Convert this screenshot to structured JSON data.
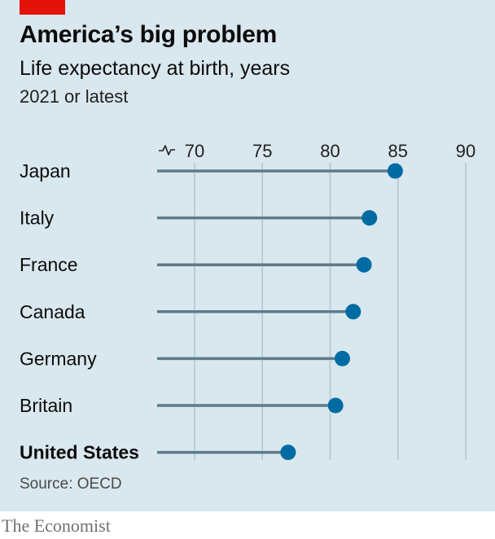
{
  "header": {
    "title": "America’s big problem",
    "subtitle": "Life expectancy at birth, years",
    "note": "2021 or latest"
  },
  "footer": {
    "source": "Source: OECD",
    "brand": "The Economist"
  },
  "colors": {
    "background": "#d9e7ee",
    "accent_red": "#e3120b",
    "dot": "#006ba2",
    "stem": "#5d7b8b",
    "grid": "#b4c5cf"
  },
  "chart_data": {
    "type": "lollipop",
    "title": "America’s big problem",
    "subtitle": "Life expectancy at birth, years",
    "xlim": [
      70,
      90
    ],
    "axis_break_below": 70,
    "x_ticks": [
      70,
      75,
      80,
      85,
      90
    ],
    "tick_labels": [
      "70",
      "75",
      "80",
      "85",
      "90"
    ],
    "grid": true,
    "categories": [
      "Japan",
      "Italy",
      "France",
      "Canada",
      "Germany",
      "Britain",
      "United States"
    ],
    "values": [
      84.8,
      82.9,
      82.5,
      81.7,
      80.9,
      80.4,
      76.9
    ],
    "highlight": "United States"
  }
}
